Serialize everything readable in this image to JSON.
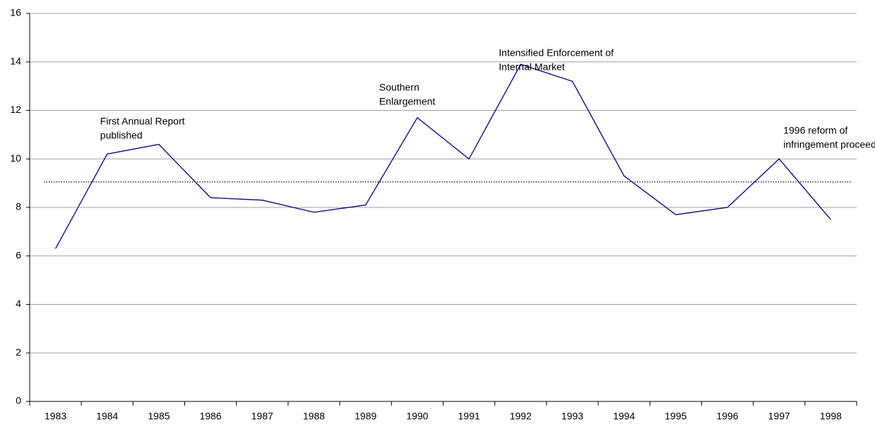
{
  "chart_data": {
    "type": "line",
    "categories": [
      "1983",
      "1984",
      "1985",
      "1986",
      "1987",
      "1988",
      "1989",
      "1990",
      "1991",
      "1992",
      "1993",
      "1994",
      "1995",
      "1996",
      "1997",
      "1998"
    ],
    "values": [
      6.3,
      10.2,
      10.6,
      8.4,
      8.3,
      7.8,
      8.1,
      11.7,
      10.0,
      13.9,
      13.2,
      9.3,
      7.7,
      8.0,
      10.0,
      7.5
    ],
    "color": "#000080",
    "reference_line": {
      "value": 9.05,
      "color": "#000000",
      "style": "dotted"
    },
    "ylim": [
      0,
      16
    ],
    "yticks": [
      0,
      2,
      4,
      6,
      8,
      10,
      12,
      14,
      16
    ],
    "grid": true,
    "annotations": [
      {
        "lines": [
          "First Annual Report",
          "published"
        ],
        "category": 1
      },
      {
        "lines": [
          "Southern",
          "Enlargement"
        ],
        "category": 7
      },
      {
        "lines": [
          "Intensified Enforcement of",
          "Internal Market"
        ],
        "category": 9
      },
      {
        "lines": [
          "1996 reform of",
          "infringement proceedings"
        ],
        "category": 14
      }
    ]
  }
}
